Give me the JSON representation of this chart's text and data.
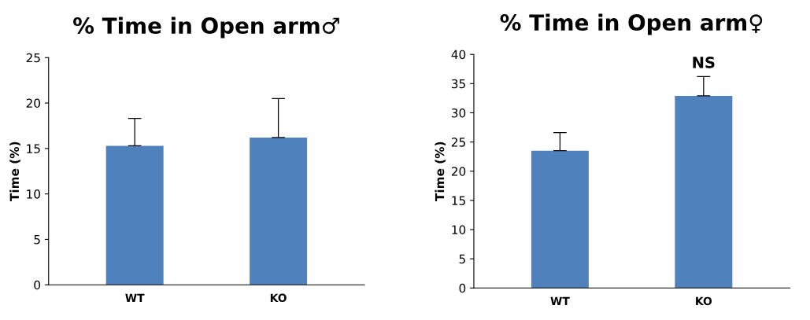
{
  "chart_data": [
    {
      "type": "bar",
      "title": "% Time in Open arm♂",
      "ylabel": "Time (%)",
      "categories": [
        "WT",
        "KO"
      ],
      "values": [
        15.3,
        16.2
      ],
      "errors": [
        [
          15.3,
          18.3
        ],
        [
          16.2,
          20.5
        ]
      ],
      "color": "#4f81bd",
      "ylim": [
        0,
        25
      ],
      "yticks": [
        0,
        5,
        10,
        15,
        20,
        25
      ],
      "grid": false
    },
    {
      "type": "bar",
      "title": "% Time in Open arm♀",
      "ylabel": "Time (%)",
      "categories": [
        "WT",
        "KO"
      ],
      "values": [
        23.5,
        32.9
      ],
      "errors": [
        [
          23.5,
          26.6
        ],
        [
          32.9,
          36.2
        ]
      ],
      "color": "#4f81bd",
      "ylim": [
        0,
        40
      ],
      "yticks": [
        0,
        5,
        10,
        15,
        20,
        25,
        30,
        35,
        40
      ],
      "grid": false,
      "annotations": [
        "NS"
      ]
    }
  ]
}
